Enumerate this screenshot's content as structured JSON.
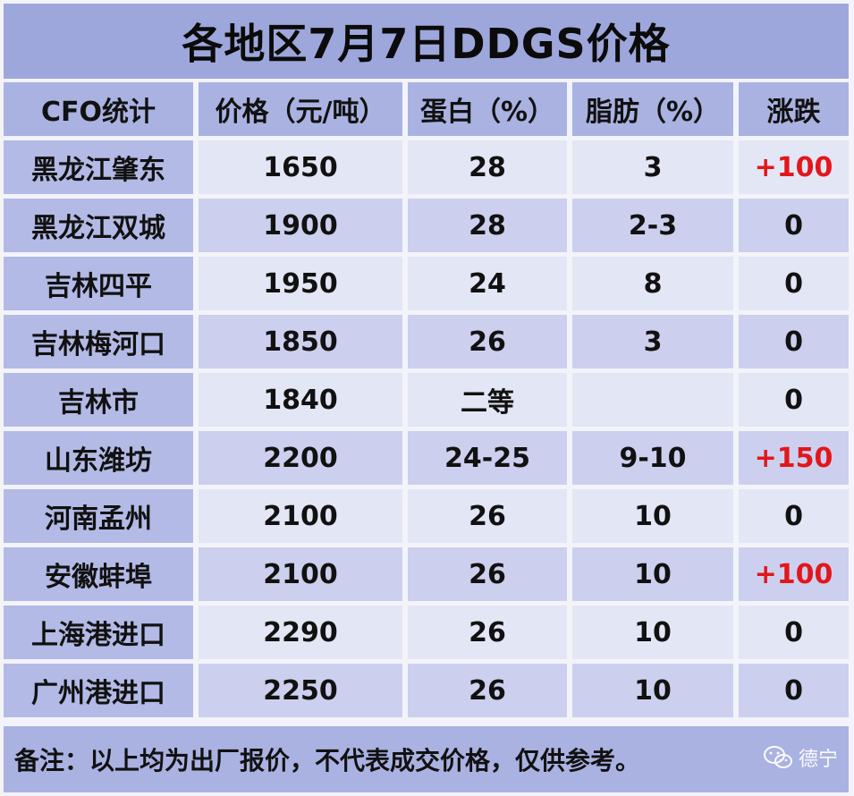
{
  "title": "各地区7月7日DDGS价格",
  "columns": [
    "CFO统计",
    "价格（元/吨）",
    "蛋白（%）",
    "脂肪（%）",
    "涨跌"
  ],
  "rows": [
    {
      "region": "黑龙江肇东",
      "price": "1650",
      "protein": "28",
      "fat": "3",
      "change": "+100"
    },
    {
      "region": "黑龙江双城",
      "price": "1900",
      "protein": "28",
      "fat": "2-3",
      "change": "0"
    },
    {
      "region": "吉林四平",
      "price": "1950",
      "protein": "24",
      "fat": "8",
      "change": "0"
    },
    {
      "region": "吉林梅河口",
      "price": "1850",
      "protein": "26",
      "fat": "3",
      "change": "0"
    },
    {
      "region": "吉林市",
      "price": "1840",
      "protein": "二等",
      "fat": "",
      "change": "0"
    },
    {
      "region": "山东潍坊",
      "price": "2200",
      "protein": "24-25",
      "fat": "9-10",
      "change": "+150"
    },
    {
      "region": "河南孟州",
      "price": "2100",
      "protein": "26",
      "fat": "10",
      "change": "0"
    },
    {
      "region": "安徽蚌埠",
      "price": "2100",
      "protein": "26",
      "fat": "10",
      "change": "+100"
    },
    {
      "region": "上海港进口",
      "price": "2290",
      "protein": "26",
      "fat": "10",
      "change": "0"
    },
    {
      "region": "广州港进口",
      "price": "2250",
      "protein": "26",
      "fat": "10",
      "change": "0"
    }
  ],
  "note": "备注：以上均为出厂报价，不代表成交价格，仅供参考。",
  "watermark": {
    "icon": "wechat-icon",
    "label": "德宁"
  },
  "colors": {
    "title_bg": "#9ea7db",
    "header_bg": "#aab2e2",
    "region_bg": "#b3bae6",
    "row_light": "#e3e6f4",
    "row_dark": "#ccd0ee",
    "increase": "#e3161b"
  }
}
